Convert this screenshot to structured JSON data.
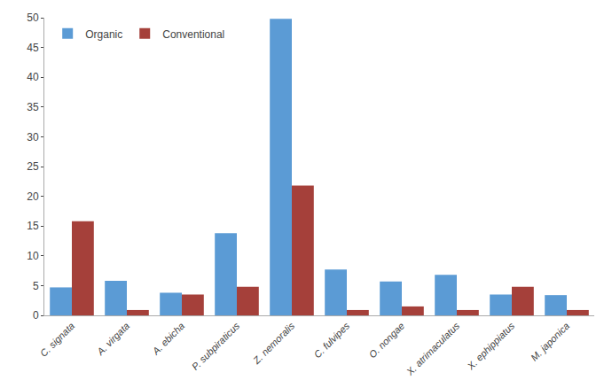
{
  "chart_data": {
    "type": "bar",
    "categories": [
      "C. signata",
      "A. virgata",
      "A. ebicha",
      "P. subpiraticus",
      "Z. nemoralis",
      "C. fulvipes",
      "O. nongae",
      "X. atrimaculatus",
      "X. ephippiatus",
      "M. japonica"
    ],
    "series": [
      {
        "name": "Organic",
        "color": "#5B9BD5",
        "values": [
          4.7,
          5.8,
          3.8,
          13.8,
          49.8,
          7.7,
          5.7,
          6.8,
          3.5,
          3.4
        ]
      },
      {
        "name": "Conventional",
        "color": "#A5403A",
        "values": [
          15.8,
          0.9,
          3.5,
          4.8,
          21.8,
          0.9,
          1.5,
          0.9,
          4.8,
          0.9
        ]
      }
    ],
    "ylim": [
      0,
      50
    ],
    "yticks": [
      0,
      5,
      10,
      15,
      20,
      25,
      30,
      35,
      40,
      45,
      50
    ],
    "grid": false,
    "legend": "upper left"
  }
}
